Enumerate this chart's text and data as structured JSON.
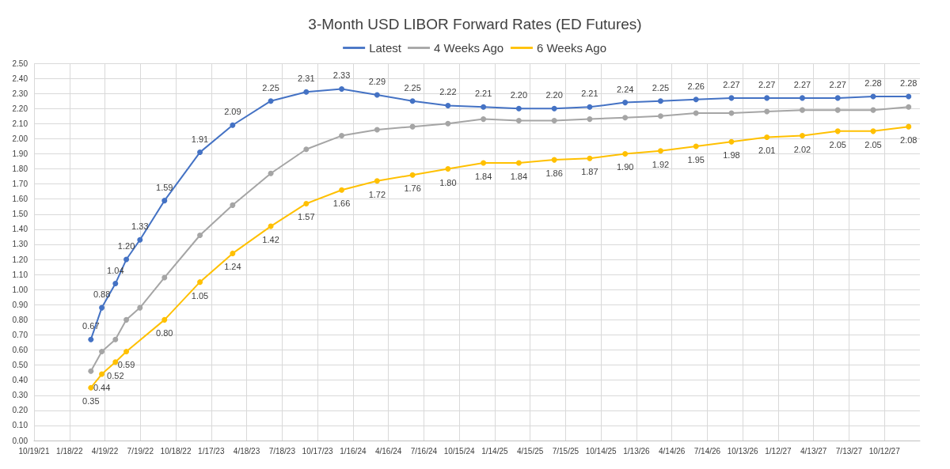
{
  "chart_data": {
    "type": "line",
    "title": "3-Month USD LIBOR Forward Rates (ED Futures)",
    "x": [
      "2022-03-14",
      "2022-04-11",
      "2022-05-16",
      "2022-06-13",
      "2022-07-18",
      "2022-09-19",
      "2022-12-19",
      "2023-03-13",
      "2023-06-19",
      "2023-09-18",
      "2023-12-18",
      "2024-03-18",
      "2024-06-17",
      "2024-09-16",
      "2024-12-16",
      "2025-03-17",
      "2025-06-16",
      "2025-09-15",
      "2025-12-15",
      "2026-03-16",
      "2026-06-15",
      "2026-09-14",
      "2026-12-14",
      "2027-03-15",
      "2027-06-14",
      "2027-09-13",
      "2027-12-13"
    ],
    "series": [
      {
        "name": "Latest",
        "color": "#4472c4",
        "values": [
          0.67,
          0.88,
          1.04,
          1.2,
          1.33,
          1.59,
          1.91,
          2.09,
          2.25,
          2.31,
          2.33,
          2.29,
          2.25,
          2.22,
          2.21,
          2.2,
          2.2,
          2.21,
          2.24,
          2.25,
          2.26,
          2.27,
          2.27,
          2.27,
          2.27,
          2.28,
          2.28
        ],
        "value_labels": [
          "0.67",
          "0.88",
          "1.04",
          "1.20",
          "1.33",
          "1.59",
          "1.91",
          "2.09",
          "2.25",
          "2.31",
          "2.33",
          "2.29",
          "2.25",
          "2.22",
          "2.21",
          "2.20",
          "2.20",
          "2.21",
          "2.24",
          "2.25",
          "2.26",
          "2.27",
          "2.27",
          "2.27",
          "2.27",
          "2.28",
          "2.28"
        ]
      },
      {
        "name": "4 Weeks Ago",
        "color": "#a5a5a5",
        "values": [
          0.46,
          0.59,
          0.67,
          0.8,
          0.88,
          1.08,
          1.36,
          1.56,
          1.77,
          1.93,
          2.02,
          2.06,
          2.08,
          2.1,
          2.13,
          2.12,
          2.12,
          2.13,
          2.14,
          2.15,
          2.17,
          2.17,
          2.18,
          2.19,
          2.19,
          2.19,
          2.21
        ]
      },
      {
        "name": "6 Weeks Ago",
        "color": "#ffc000",
        "x": [
          "2022-03-14",
          "2022-04-11",
          "2022-05-16",
          "2022-06-13",
          "2022-09-19",
          "2022-12-19",
          "2023-03-13",
          "2023-06-19",
          "2023-09-18",
          "2023-12-18",
          "2024-03-18",
          "2024-06-17",
          "2024-09-16",
          "2024-12-16",
          "2025-03-17",
          "2025-06-16",
          "2025-09-15",
          "2025-12-15",
          "2026-03-16",
          "2026-06-15",
          "2026-09-14",
          "2026-12-14",
          "2027-03-15",
          "2027-06-14",
          "2027-09-13",
          "2027-12-13"
        ],
        "values": [
          0.35,
          0.44,
          0.52,
          0.59,
          0.8,
          1.05,
          1.24,
          1.42,
          1.57,
          1.66,
          1.72,
          1.76,
          1.8,
          1.84,
          1.84,
          1.86,
          1.87,
          1.9,
          1.92,
          1.95,
          1.98,
          2.01,
          2.02,
          2.05,
          2.05,
          2.08
        ],
        "value_labels": [
          "0.35",
          "0.44",
          "0.52",
          "0.59",
          "0.80",
          "1.05",
          "1.24",
          "1.42",
          "1.57",
          "1.66",
          "1.72",
          "1.76",
          "1.80",
          "1.84",
          "1.84",
          "1.86",
          "1.87",
          "1.90",
          "1.92",
          "1.95",
          "1.98",
          "2.01",
          "2.02",
          "2.05",
          "2.05",
          "2.08"
        ]
      }
    ],
    "xlim": [
      "2021-10-19",
      "2028-01-11"
    ],
    "xticks": [
      {
        "value": "2021-10-19",
        "label": "10/19/21"
      },
      {
        "value": "2022-01-18",
        "label": "1/18/22"
      },
      {
        "value": "2022-04-19",
        "label": "4/19/22"
      },
      {
        "value": "2022-07-19",
        "label": "7/19/22"
      },
      {
        "value": "2022-10-18",
        "label": "10/18/22"
      },
      {
        "value": "2023-01-17",
        "label": "1/17/23"
      },
      {
        "value": "2023-04-18",
        "label": "4/18/23"
      },
      {
        "value": "2023-07-18",
        "label": "7/18/23"
      },
      {
        "value": "2023-10-17",
        "label": "10/17/23"
      },
      {
        "value": "2024-01-16",
        "label": "1/16/24"
      },
      {
        "value": "2024-04-16",
        "label": "4/16/24"
      },
      {
        "value": "2024-07-16",
        "label": "7/16/24"
      },
      {
        "value": "2024-10-15",
        "label": "10/15/24"
      },
      {
        "value": "2025-01-14",
        "label": "1/14/25"
      },
      {
        "value": "2025-04-15",
        "label": "4/15/25"
      },
      {
        "value": "2025-07-15",
        "label": "7/15/25"
      },
      {
        "value": "2025-10-14",
        "label": "10/14/25"
      },
      {
        "value": "2026-01-13",
        "label": "1/13/26"
      },
      {
        "value": "2026-04-14",
        "label": "4/14/26"
      },
      {
        "value": "2026-07-14",
        "label": "7/14/26"
      },
      {
        "value": "2026-10-13",
        "label": "10/13/26"
      },
      {
        "value": "2027-01-12",
        "label": "1/12/27"
      },
      {
        "value": "2027-04-13",
        "label": "4/13/27"
      },
      {
        "value": "2027-07-13",
        "label": "7/13/27"
      },
      {
        "value": "2027-10-12",
        "label": "10/12/27"
      }
    ],
    "ylim": [
      0,
      2.5
    ],
    "yticks": [
      {
        "value": 0,
        "label": "0.00"
      },
      {
        "value": 0.1,
        "label": "0.10"
      },
      {
        "value": 0.2,
        "label": "0.20"
      },
      {
        "value": 0.3,
        "label": "0.30"
      },
      {
        "value": 0.4,
        "label": "0.40"
      },
      {
        "value": 0.5,
        "label": "0.50"
      },
      {
        "value": 0.6,
        "label": "0.60"
      },
      {
        "value": 0.7,
        "label": "0.70"
      },
      {
        "value": 0.8,
        "label": "0.80"
      },
      {
        "value": 0.9,
        "label": "0.90"
      },
      {
        "value": 1,
        "label": "1.00"
      },
      {
        "value": 1.1,
        "label": "1.10"
      },
      {
        "value": 1.2,
        "label": "1.20"
      },
      {
        "value": 1.3,
        "label": "1.30"
      },
      {
        "value": 1.4,
        "label": "1.40"
      },
      {
        "value": 1.5,
        "label": "1.50"
      },
      {
        "value": 1.6,
        "label": "1.60"
      },
      {
        "value": 1.7,
        "label": "1.70"
      },
      {
        "value": 1.8,
        "label": "1.80"
      },
      {
        "value": 1.9,
        "label": "1.90"
      },
      {
        "value": 2,
        "label": "2.00"
      },
      {
        "value": 2.1,
        "label": "2.10"
      },
      {
        "value": 2.2,
        "label": "2.20"
      },
      {
        "value": 2.3,
        "label": "2.30"
      },
      {
        "value": 2.4,
        "label": "2.40"
      },
      {
        "value": 2.5,
        "label": "2.50"
      }
    ],
    "grid": true,
    "legend": "top",
    "marker": "circle",
    "line_style": "solid"
  }
}
